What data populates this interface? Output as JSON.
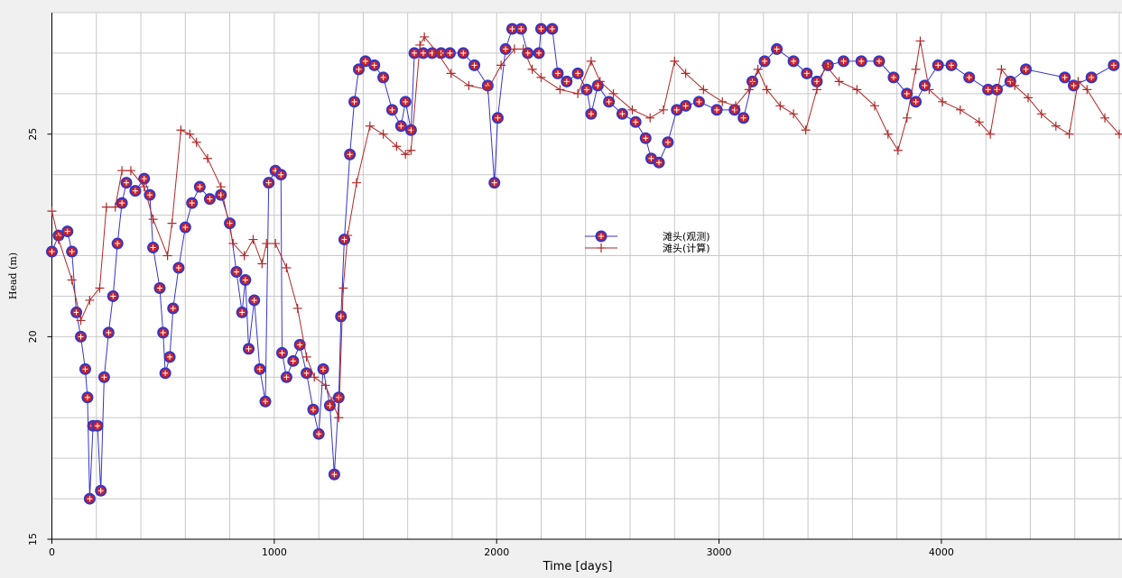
{
  "chart_data": {
    "type": "line",
    "x_label": "Time [days]",
    "y_label": "Head (m)",
    "xlim": [
      0,
      4800
    ],
    "ylim": [
      15,
      28
    ],
    "xticks": [
      0,
      1000,
      2000,
      3000,
      4000
    ],
    "yticks": [
      15,
      20,
      25
    ],
    "xgrid": [
      0,
      200,
      400,
      600,
      800,
      1000,
      1200,
      1400,
      1600,
      1800,
      2000,
      2200,
      2400,
      2600,
      2800,
      3000,
      3200,
      3400,
      3600,
      3800,
      4000,
      4200,
      4400,
      4600,
      4800
    ],
    "ygrid": [
      15,
      16,
      17,
      18,
      19,
      20,
      21,
      22,
      23,
      24,
      25,
      26,
      27,
      28
    ],
    "grid": true,
    "legend": "center",
    "series": [
      {
        "name": "滩头(观测)",
        "color": "#3535c8",
        "marker": "circle",
        "x": [
          0,
          30,
          70,
          90,
          110,
          130,
          150,
          160,
          170,
          185,
          205,
          220,
          235,
          255,
          275,
          295,
          315,
          335,
          375,
          415,
          440,
          455,
          485,
          500,
          510,
          530,
          545,
          570,
          600,
          630,
          665,
          710,
          760,
          800,
          830,
          855,
          870,
          885,
          910,
          935,
          960,
          975,
          1005,
          1030,
          1035,
          1055,
          1085,
          1115,
          1145,
          1175,
          1200,
          1220,
          1250,
          1270,
          1290,
          1300,
          1315,
          1340,
          1360,
          1380,
          1410,
          1450,
          1490,
          1530,
          1570,
          1590,
          1615,
          1630,
          1670,
          1710,
          1750,
          1790,
          1850,
          1900,
          1960,
          1990,
          2005,
          2040,
          2070,
          2110,
          2140,
          2190,
          2200,
          2250,
          2275,
          2315,
          2365,
          2405,
          2425,
          2455,
          2505,
          2565,
          2625,
          2670,
          2695,
          2730,
          2770,
          2810,
          2850,
          2910,
          2990,
          3070,
          3110,
          3150,
          3205,
          3260,
          3335,
          3395,
          3440,
          3490,
          3560,
          3640,
          3720,
          3785,
          3845,
          3885,
          3925,
          3985,
          4045,
          4125,
          4210,
          4250,
          4310,
          4380,
          4555,
          4595,
          4675,
          4775
        ],
        "values": [
          22.1,
          22.5,
          22.6,
          22.1,
          20.6,
          20.0,
          19.2,
          18.5,
          16.0,
          17.8,
          17.8,
          16.2,
          19.0,
          20.1,
          21.0,
          22.3,
          23.3,
          23.8,
          23.6,
          23.9,
          23.5,
          22.2,
          21.2,
          20.1,
          19.1,
          19.5,
          20.7,
          21.7,
          22.7,
          23.3,
          23.7,
          23.4,
          23.5,
          22.8,
          21.6,
          20.6,
          21.4,
          19.7,
          20.9,
          19.2,
          18.4,
          23.8,
          24.1,
          24.0,
          19.6,
          19.0,
          19.4,
          19.8,
          19.1,
          18.2,
          17.6,
          19.2,
          18.3,
          16.6,
          18.5,
          20.5,
          22.4,
          24.5,
          25.8,
          26.6,
          26.8,
          26.7,
          26.4,
          25.6,
          25.2,
          25.8,
          25.1,
          27.0,
          27.0,
          27.0,
          27.0,
          27.0,
          27.0,
          26.7,
          26.2,
          23.8,
          25.4,
          27.1,
          27.6,
          27.6,
          27.0,
          27.0,
          27.6,
          27.6,
          26.5,
          26.3,
          26.5,
          26.1,
          25.5,
          26.2,
          25.8,
          25.5,
          25.3,
          24.9,
          24.4,
          24.3,
          24.8,
          25.6,
          25.7,
          25.8,
          25.6,
          25.6,
          25.4,
          26.3,
          26.8,
          27.1,
          26.8,
          26.5,
          26.3,
          26.7,
          26.8,
          26.8,
          26.8,
          26.4,
          26.0,
          25.8,
          26.2,
          26.7,
          26.7,
          26.4,
          26.1,
          26.1,
          26.3,
          26.6,
          26.4,
          26.2,
          26.4,
          26.7
        ]
      },
      {
        "name": "滩头(计算)",
        "color": "#b02828",
        "marker": "plus",
        "x": [
          0,
          30,
          90,
          130,
          170,
          215,
          245,
          285,
          315,
          355,
          415,
          455,
          520,
          540,
          580,
          620,
          650,
          700,
          760,
          815,
          865,
          905,
          945,
          965,
          1005,
          1055,
          1105,
          1145,
          1180,
          1230,
          1260,
          1290,
          1310,
          1330,
          1370,
          1430,
          1490,
          1550,
          1590,
          1615,
          1655,
          1675,
          1735,
          1795,
          1875,
          1960,
          2020,
          2080,
          2120,
          2160,
          2200,
          2285,
          2365,
          2425,
          2465,
          2525,
          2610,
          2690,
          2750,
          2800,
          2850,
          2930,
          3015,
          3075,
          3135,
          3175,
          3215,
          3275,
          3335,
          3390,
          3440,
          3480,
          3540,
          3620,
          3700,
          3760,
          3805,
          3845,
          3885,
          3905,
          3945,
          4005,
          4085,
          4170,
          4220,
          4270,
          4330,
          4390,
          4450,
          4515,
          4575,
          4615,
          4655,
          4735,
          4800
        ],
        "values": [
          23.1,
          22.4,
          21.4,
          20.4,
          20.9,
          21.2,
          23.2,
          23.2,
          24.1,
          24.1,
          23.7,
          22.9,
          22.0,
          22.8,
          25.1,
          25.0,
          24.8,
          24.4,
          23.7,
          22.3,
          22.0,
          22.4,
          21.8,
          22.3,
          22.3,
          21.7,
          20.7,
          19.5,
          19.0,
          18.8,
          18.4,
          18.0,
          21.2,
          22.5,
          23.8,
          25.2,
          25.0,
          24.7,
          24.5,
          24.6,
          27.2,
          27.4,
          27.0,
          26.5,
          26.2,
          26.1,
          26.7,
          27.1,
          27.1,
          26.6,
          26.4,
          26.1,
          26.0,
          26.8,
          26.3,
          26.0,
          25.6,
          25.4,
          25.6,
          26.8,
          26.5,
          26.1,
          25.8,
          25.7,
          26.1,
          26.6,
          26.1,
          25.7,
          25.5,
          25.1,
          26.1,
          26.7,
          26.3,
          26.1,
          25.7,
          25.0,
          24.6,
          25.4,
          26.6,
          27.3,
          26.1,
          25.8,
          25.6,
          25.3,
          25.0,
          26.6,
          26.2,
          25.9,
          25.5,
          25.2,
          25.0,
          26.3,
          26.1,
          25.4,
          25.0
        ]
      }
    ]
  }
}
